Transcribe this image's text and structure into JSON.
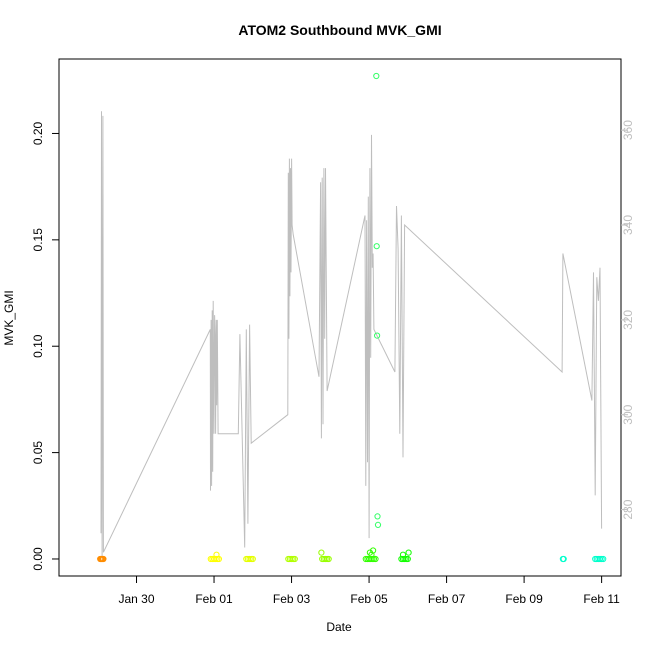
{
  "chart_data": {
    "type": "scatter",
    "title": "ATOM2 Southbound MVK_GMI",
    "xlabel": "Date",
    "ylabel": "MVK_GMI",
    "x_unit": "days",
    "xlim": [
      "2017-01-28T00:00",
      "2017-02-11T12:00"
    ],
    "ylim": [
      -0.008,
      0.235
    ],
    "y2lim": [
      266,
      375
    ],
    "x_ticks": [
      {
        "value": "2017-01-30",
        "label": "Jan 30"
      },
      {
        "value": "2017-02-01",
        "label": "Feb 01"
      },
      {
        "value": "2017-02-03",
        "label": "Feb 03"
      },
      {
        "value": "2017-02-05",
        "label": "Feb 05"
      },
      {
        "value": "2017-02-07",
        "label": "Feb 07"
      },
      {
        "value": "2017-02-09",
        "label": "Feb 09"
      },
      {
        "value": "2017-02-11",
        "label": "Feb 11"
      }
    ],
    "y_ticks": [
      {
        "value": 0.0,
        "label": "0.00"
      },
      {
        "value": 0.05,
        "label": "0.05"
      },
      {
        "value": 0.1,
        "label": "0.10"
      },
      {
        "value": 0.15,
        "label": "0.15"
      },
      {
        "value": 0.2,
        "label": "0.20"
      }
    ],
    "y2_ticks": [
      {
        "value": 280,
        "label": "280"
      },
      {
        "value": 300,
        "label": "300"
      },
      {
        "value": 320,
        "label": "320"
      },
      {
        "value": 340,
        "label": "340"
      },
      {
        "value": 360,
        "label": "360"
      }
    ],
    "secondary_series": {
      "color": "#bebebe",
      "x": [
        "2017-01-29T02:00",
        "2017-01-29T02:20",
        "2017-01-29T02:40",
        "2017-01-29T03:10",
        "2017-01-29T03:30",
        "2017-01-31T21:40",
        "2017-01-31T21:50",
        "2017-01-31T22:10",
        "2017-01-31T22:30",
        "2017-01-31T22:50",
        "2017-01-31T23:10",
        "2017-01-31T23:30",
        "2017-02-01T00:00",
        "2017-02-01T00:20",
        "2017-02-01T00:40",
        "2017-02-01T01:00",
        "2017-02-01T01:20",
        "2017-02-01T01:40",
        "2017-02-01T02:00",
        "2017-02-01T02:30",
        "2017-02-01T15:00",
        "2017-02-01T16:00",
        "2017-02-01T19:00",
        "2017-02-01T20:00",
        "2017-02-01T21:00",
        "2017-02-01T22:00",
        "2017-02-01T23:00",
        "2017-02-02T21:40",
        "2017-02-02T22:00",
        "2017-02-02T22:20",
        "2017-02-02T22:40",
        "2017-02-02T23:00",
        "2017-02-02T23:20",
        "2017-02-02T23:40",
        "2017-02-03T00:00",
        "2017-02-03T00:20",
        "2017-02-03T01:00",
        "2017-02-03T17:00",
        "2017-02-03T18:00",
        "2017-02-03T18:30",
        "2017-02-03T19:00",
        "2017-02-03T19:30",
        "2017-02-03T20:00",
        "2017-02-03T20:30",
        "2017-02-03T21:00",
        "2017-02-03T22:00",
        "2017-02-04T21:30",
        "2017-02-04T22:00",
        "2017-02-04T22:30",
        "2017-02-04T23:00",
        "2017-02-04T23:30",
        "2017-02-05T00:00",
        "2017-02-05T00:30",
        "2017-02-05T01:00",
        "2017-02-05T01:30",
        "2017-02-05T02:00",
        "2017-02-05T02:30",
        "2017-02-05T03:00",
        "2017-02-05T16:00",
        "2017-02-05T17:00",
        "2017-02-05T18:00",
        "2017-02-05T19:00",
        "2017-02-05T20:00",
        "2017-02-05T21:00",
        "2017-02-05T22:00",
        "2017-02-09T23:30",
        "2017-02-10T00:00",
        "2017-02-10T18:00",
        "2017-02-10T19:00",
        "2017-02-10T20:00",
        "2017-02-10T21:00",
        "2017-02-10T22:00",
        "2017-02-10T23:00",
        "2017-02-11T00:00"
      ],
      "y": [
        275,
        364,
        270,
        363,
        271,
        318,
        284,
        320,
        285,
        322,
        288,
        324,
        296,
        321,
        317,
        296,
        320,
        302,
        320,
        296,
        296,
        317,
        272,
        318,
        277,
        319,
        294,
        300,
        351,
        316,
        354,
        325,
        352,
        330,
        354,
        340,
        338,
        308,
        349,
        295,
        350,
        298,
        352,
        316,
        352,
        305,
        342,
        285,
        341,
        290,
        346,
        274,
        352,
        312,
        359,
        331,
        334,
        318,
        309,
        344,
        335,
        296,
        342,
        291,
        340,
        309,
        334,
        303,
        330,
        283,
        329,
        324,
        331,
        276
      ]
    },
    "series": [
      {
        "color": "#ff8c00",
        "x": [
          "2017-01-29T01:30",
          "2017-01-29T02:00",
          "2017-01-29T02:30",
          "2017-01-29T03:00",
          "2017-01-29T03:30"
        ],
        "y": [
          0.0,
          0.0,
          0.0,
          0.0,
          0.0
        ]
      },
      {
        "color": "#ffff00",
        "x": [
          "2017-01-31T22:00",
          "2017-01-31T23:00",
          "2017-02-01T00:00",
          "2017-02-01T01:00",
          "2017-02-01T02:00",
          "2017-02-01T03:00",
          "2017-02-01T01:30"
        ],
        "y": [
          0.0,
          0.0,
          0.0,
          0.0,
          0.0,
          0.0,
          0.002
        ]
      },
      {
        "color": "#e5ff00",
        "x": [
          "2017-02-01T20:00",
          "2017-02-01T21:00",
          "2017-02-01T22:00",
          "2017-02-01T23:00",
          "2017-02-02T00:00"
        ],
        "y": [
          0.0,
          0.0,
          0.0,
          0.0,
          0.0
        ]
      },
      {
        "color": "#b2ff00",
        "x": [
          "2017-02-02T22:00",
          "2017-02-02T23:00",
          "2017-02-03T00:00",
          "2017-02-03T01:00",
          "2017-02-03T02:00"
        ],
        "y": [
          0.0,
          0.0,
          0.0,
          0.0,
          0.0
        ]
      },
      {
        "color": "#99ff00",
        "x": [
          "2017-02-03T19:00",
          "2017-02-03T20:00",
          "2017-02-03T21:00",
          "2017-02-03T22:00",
          "2017-02-03T23:00",
          "2017-02-03T18:30"
        ],
        "y": [
          0.0,
          0.0,
          0.0,
          0.0,
          0.0,
          0.003
        ]
      },
      {
        "color": "#33ff00",
        "x": [
          "2017-02-04T22:00",
          "2017-02-04T23:00",
          "2017-02-05T00:00",
          "2017-02-05T01:00",
          "2017-02-05T02:00",
          "2017-02-05T03:00",
          "2017-02-05T04:00",
          "2017-02-05T01:30",
          "2017-02-05T02:30",
          "2017-02-05T00:30"
        ],
        "y": [
          0.0,
          0.0,
          0.0,
          0.0,
          0.0,
          0.0,
          0.0,
          0.002,
          0.004,
          0.003
        ]
      },
      {
        "color": "#33ff66",
        "x": [
          "2017-02-05T04:30",
          "2017-02-05T04:45",
          "2017-02-05T05:00",
          "2017-02-05T05:15",
          "2017-02-05T05:30"
        ],
        "y": [
          0.227,
          0.147,
          0.105,
          0.02,
          0.016
        ]
      },
      {
        "color": "#11ff00",
        "x": [
          "2017-02-05T20:00",
          "2017-02-05T21:00",
          "2017-02-05T22:00",
          "2017-02-05T23:00",
          "2017-02-06T00:00",
          "2017-02-05T21:00",
          "2017-02-06T00:30"
        ],
        "y": [
          0.0,
          0.0,
          0.0,
          0.0,
          0.0,
          0.002,
          0.003
        ]
      },
      {
        "color": "#00ffcc",
        "x": [
          "2017-02-10T00:00",
          "2017-02-10T00:30"
        ],
        "y": [
          0.0,
          0.0
        ]
      },
      {
        "color": "#00ffcc",
        "x": [
          "2017-02-10T20:00",
          "2017-02-10T21:00",
          "2017-02-10T22:00",
          "2017-02-10T23:00",
          "2017-02-11T00:00",
          "2017-02-11T01:00"
        ],
        "y": [
          0.0,
          0.0,
          0.0,
          0.0,
          0.0,
          0.0
        ]
      }
    ]
  }
}
